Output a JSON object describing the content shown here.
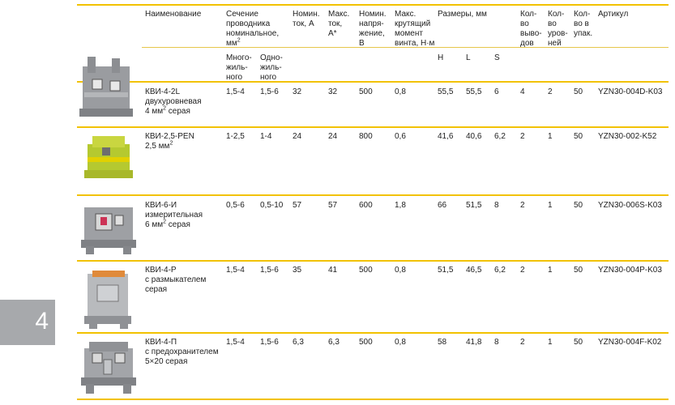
{
  "header": {
    "name": "Наименование",
    "section": [
      "Сечение",
      "проводника",
      "номинальное,",
      "мм²"
    ],
    "section_multi": [
      "Много-",
      "жиль-",
      "ного"
    ],
    "section_single": [
      "Одно-",
      "жиль-",
      "ного"
    ],
    "nom_current": [
      "Номин.",
      "ток, А"
    ],
    "max_current": [
      "Макс.",
      "ток,",
      "А*"
    ],
    "nom_voltage": [
      "Номин.",
      "напря-",
      "жение,",
      "В"
    ],
    "torque": [
      "Макс.",
      "крутящий",
      "момент",
      "винта, Н·м"
    ],
    "dims": "Размеры, мм",
    "dim_h": "H",
    "dim_l": "L",
    "dim_s": "S",
    "outputs": [
      "Кол-",
      "во",
      "выво-",
      "дов"
    ],
    "levels": [
      "Кол-",
      "во",
      "уров-",
      "ней"
    ],
    "pack": [
      "Кол-",
      "во в",
      "упак."
    ],
    "article": "Артикул"
  },
  "rows": [
    {
      "name": [
        "КВИ-4-2L",
        "двухуровневая",
        "4 мм² серая"
      ],
      "multi": "1,5-4",
      "single": "1,5-6",
      "nom": "32",
      "max": "32",
      "volt": "500",
      "torque": "0,8",
      "h": "55,5",
      "l": "55,5",
      "s": "6",
      "outputs": "4",
      "levels": "2",
      "pack": "50",
      "article": "YZN30-004D-K03"
    },
    {
      "name": [
        "КВИ-2,5-PEN",
        "2,5 мм²"
      ],
      "multi": "1-2,5",
      "single": "1-4",
      "nom": "24",
      "max": "24",
      "volt": "800",
      "torque": "0,6",
      "h": "41,6",
      "l": "40,6",
      "s": "6,2",
      "outputs": "2",
      "levels": "1",
      "pack": "50",
      "article": "YZN30-002-K52"
    },
    {
      "name": [
        "КВИ-6-И",
        "измерительная",
        "6 мм² серая"
      ],
      "multi": "0,5-6",
      "single": "0,5-10",
      "nom": "57",
      "max": "57",
      "volt": "600",
      "torque": "1,8",
      "h": "66",
      "l": "51,5",
      "s": "8",
      "outputs": "2",
      "levels": "1",
      "pack": "50",
      "article": "YZN30-006S-K03"
    },
    {
      "name": [
        "КВИ-4-Р",
        "с размыкателем",
        "серая"
      ],
      "multi": "1,5-4",
      "single": "1,5-6",
      "nom": "35",
      "max": "41",
      "volt": "500",
      "torque": "0,8",
      "h": "51,5",
      "l": "46,5",
      "s": "6,2",
      "outputs": "2",
      "levels": "1",
      "pack": "50",
      "article": "YZN30-004P-K03"
    },
    {
      "name": [
        "КВИ-4-П",
        "с предохранителем",
        "5×20 серая"
      ],
      "multi": "1,5-4",
      "single": "1,5-6",
      "nom": "6,3",
      "max": "6,3",
      "volt": "500",
      "torque": "0,8",
      "h": "58",
      "l": "41,8",
      "s": "8",
      "outputs": "2",
      "levels": "1",
      "pack": "50",
      "article": "YZN30-004F-K02"
    }
  ],
  "side_tab": "4",
  "colors": {
    "accent": "#f2c200",
    "tab": "#a7a9ac"
  }
}
